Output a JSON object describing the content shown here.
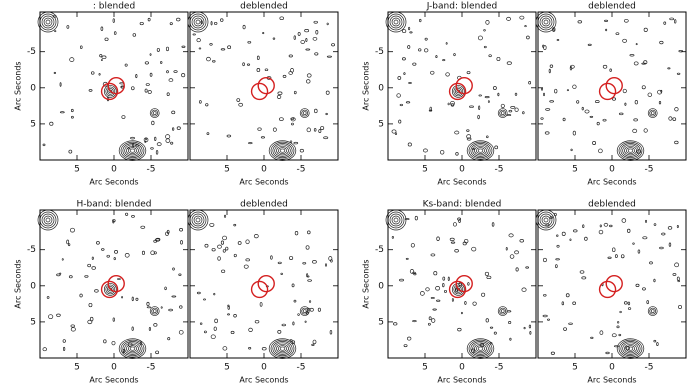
{
  "figure": {
    "xlim": [
      10,
      -10
    ],
    "ylim": [
      -10.5,
      10
    ],
    "xticks": [
      5,
      0,
      -5
    ],
    "yticks": [
      -5,
      0,
      5
    ],
    "panels": [
      {
        "title": ":  blended",
        "xlabel": "Arc Seconds",
        "ylabel": "Arc Seconds"
      },
      {
        "title": "deblended",
        "xlabel": "Arc Seconds"
      },
      {
        "title": "J-band:  blended",
        "xlabel": "Arc Seconds",
        "ylabel": "Arc Seconds"
      },
      {
        "title": "deblended",
        "xlabel": "Arc Seconds"
      },
      {
        "title": "H-band:  blended",
        "xlabel": "Arc Seconds",
        "ylabel": "Arc Seconds"
      },
      {
        "title": "deblended",
        "xlabel": "Arc Seconds"
      },
      {
        "title": "Ks-band:  blended",
        "xlabel": "Arc Seconds",
        "ylabel": "Arc Seconds"
      },
      {
        "title": "deblended",
        "xlabel": "Arc Seconds"
      }
    ]
  }
}
